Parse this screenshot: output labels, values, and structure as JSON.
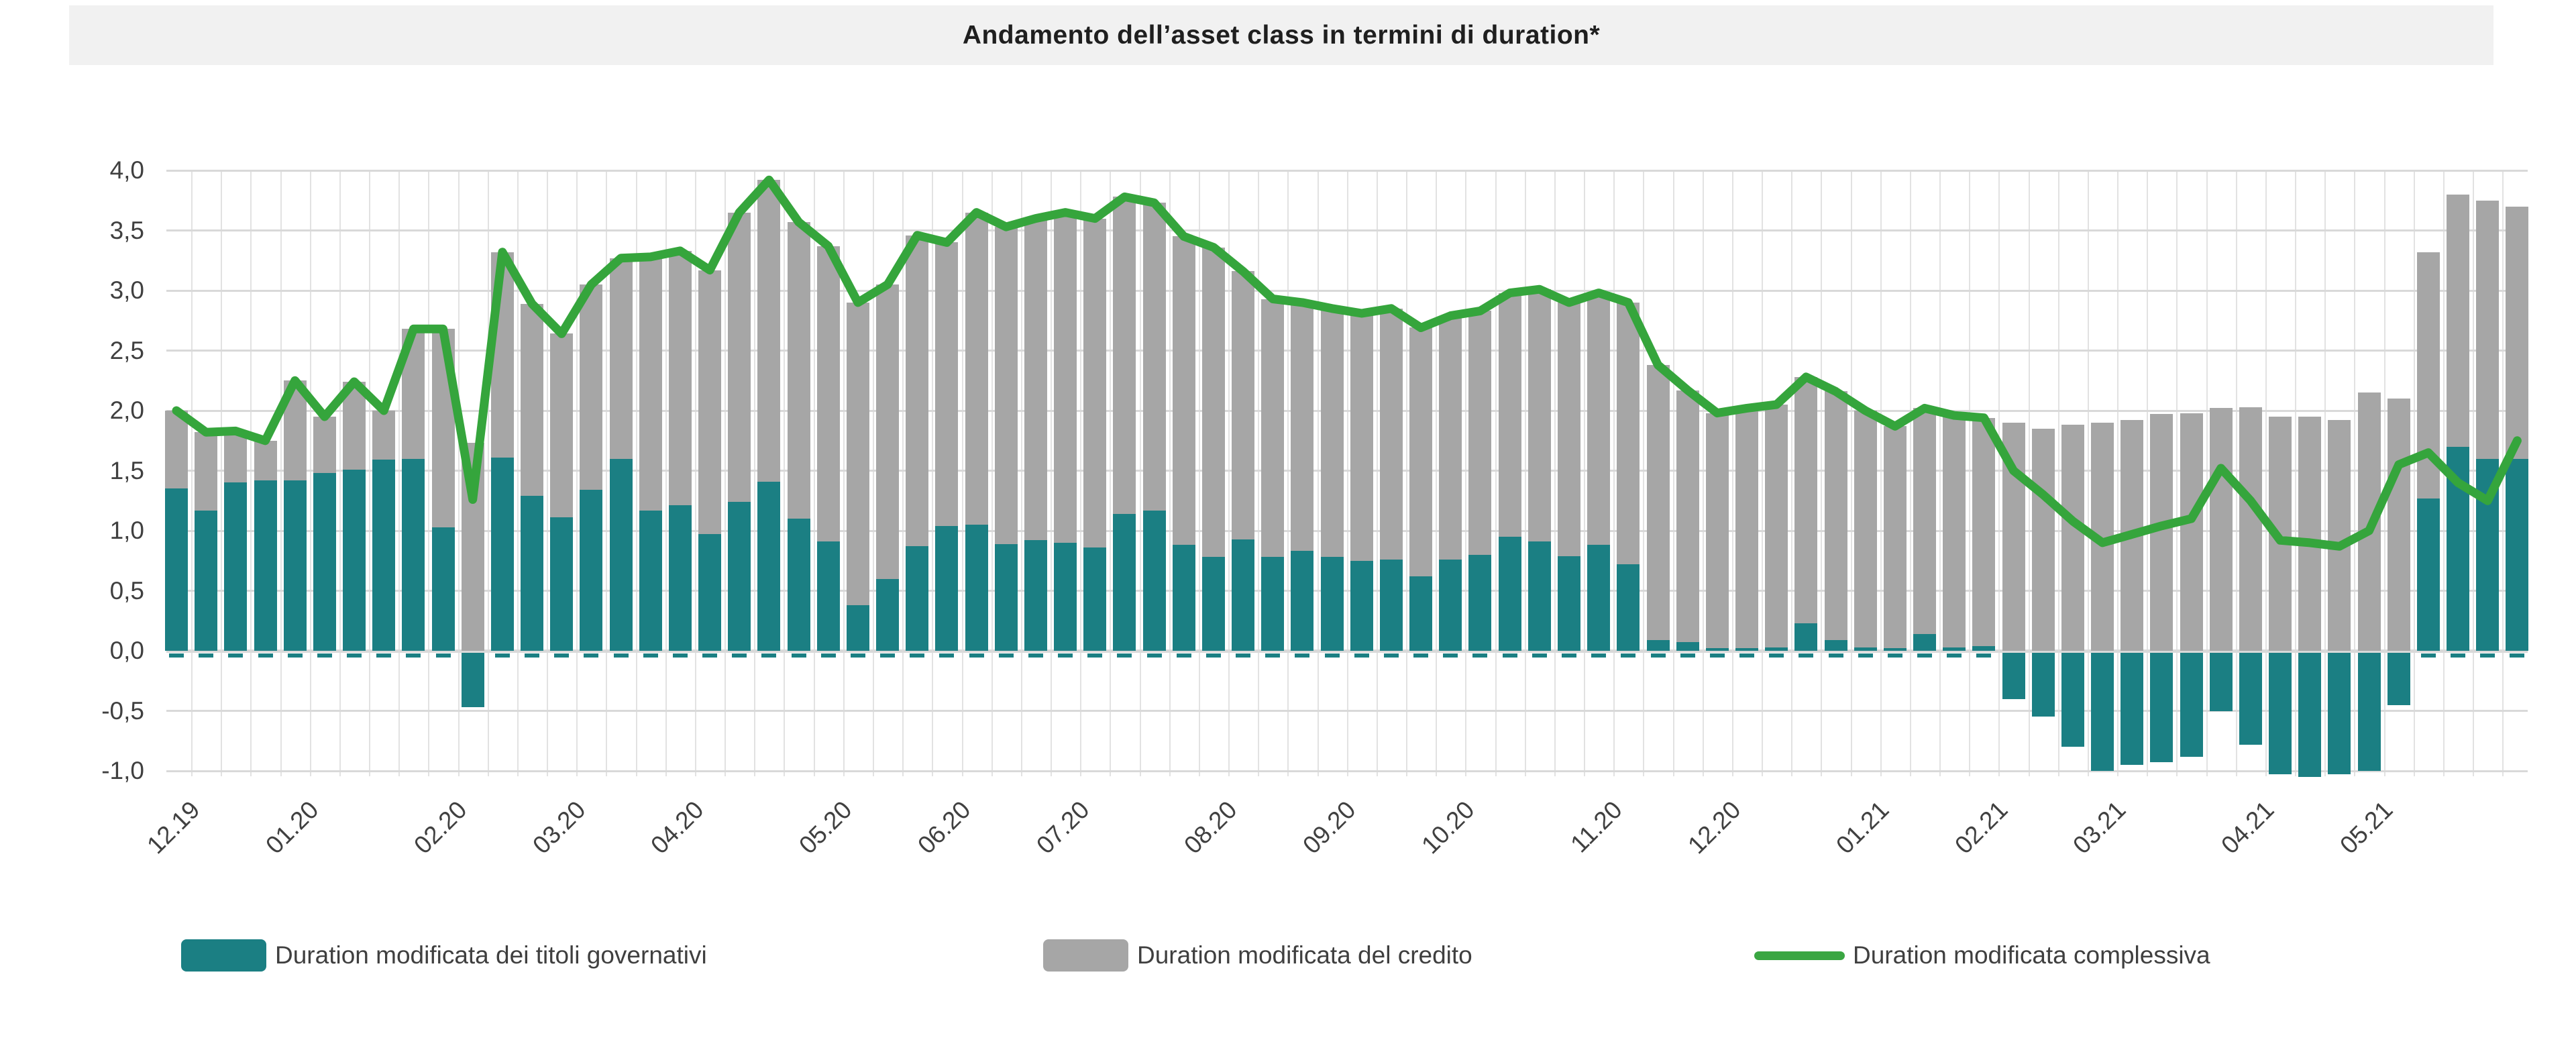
{
  "title": "Andamento dell’asset class in termini di duration*",
  "y_axis": {
    "ticks": [
      {
        "label": "4,0",
        "value": 4.0
      },
      {
        "label": "3,5",
        "value": 3.5
      },
      {
        "label": "3,0",
        "value": 3.0
      },
      {
        "label": "2,5",
        "value": 2.5
      },
      {
        "label": "2,0",
        "value": 2.0
      },
      {
        "label": "1,5",
        "value": 1.5
      },
      {
        "label": "1,0",
        "value": 1.0
      },
      {
        "label": "0,5",
        "value": 0.5
      },
      {
        "label": "0,0",
        "value": 0.0
      },
      {
        "label": "-0,5",
        "value": -0.5
      },
      {
        "label": "-1,0",
        "value": -1.0
      }
    ]
  },
  "x_axis": {
    "labels": [
      {
        "label": "12.19",
        "bar_index": 0
      },
      {
        "label": "01.20",
        "bar_index": 4
      },
      {
        "label": "02.20",
        "bar_index": 9
      },
      {
        "label": "03.20",
        "bar_index": 13
      },
      {
        "label": "04.20",
        "bar_index": 17
      },
      {
        "label": "05.20",
        "bar_index": 22
      },
      {
        "label": "06.20",
        "bar_index": 26
      },
      {
        "label": "07.20",
        "bar_index": 30
      },
      {
        "label": "08.20",
        "bar_index": 35
      },
      {
        "label": "09.20",
        "bar_index": 39
      },
      {
        "label": "10.20",
        "bar_index": 43
      },
      {
        "label": "11.20",
        "bar_index": 48
      },
      {
        "label": "12.20",
        "bar_index": 52
      },
      {
        "label": "01.21",
        "bar_index": 57
      },
      {
        "label": "02.21",
        "bar_index": 61
      },
      {
        "label": "03.21",
        "bar_index": 65
      },
      {
        "label": "04.21",
        "bar_index": 70
      },
      {
        "label": "05.21",
        "bar_index": 74
      }
    ]
  },
  "legend": {
    "items": [
      {
        "label": "Duration modificata dei titoli governativi",
        "marker": "box",
        "color": "#1b7f83"
      },
      {
        "label": "Duration modificata del credito",
        "marker": "box",
        "color": "#a6a6a6"
      },
      {
        "label": "Duration modificata complessiva",
        "marker": "line",
        "color": "#3aa642"
      }
    ]
  },
  "colors": {
    "gov_bar": "#1b7f83",
    "credit_bar": "#a6a6a6",
    "total_line": "#35a53c",
    "grid": "#d9d9d9",
    "banner_bg": "#f1f1f1",
    "axis_text": "#404040"
  },
  "chart_data": {
    "type": "bar",
    "title": "Andamento dell’asset class in termini di duration*",
    "xlabel": "",
    "ylabel": "",
    "ylim": [
      -1.0,
      4.0
    ],
    "grid": true,
    "legend_position": "bottom",
    "frequency": "weekly",
    "x_month_ticks": [
      "12.19",
      "01.20",
      "02.20",
      "03.20",
      "04.20",
      "05.20",
      "06.20",
      "07.20",
      "08.20",
      "09.20",
      "10.20",
      "11.20",
      "12.20",
      "01.21",
      "02.21",
      "03.21",
      "04.21",
      "05.21"
    ],
    "series": [
      {
        "name": "Duration modificata dei titoli governativi",
        "role": "stacked-bar-bottom",
        "color": "#1b7f83",
        "values": [
          1.35,
          1.17,
          1.4,
          1.42,
          1.42,
          1.48,
          1.51,
          1.59,
          1.6,
          1.03,
          -0.47,
          1.61,
          1.29,
          1.11,
          1.34,
          1.6,
          1.17,
          1.21,
          0.97,
          1.24,
          1.41,
          1.1,
          0.91,
          0.38,
          0.6,
          0.87,
          1.04,
          1.05,
          0.89,
          0.92,
          0.9,
          0.86,
          1.14,
          1.17,
          0.88,
          0.78,
          0.93,
          0.78,
          0.83,
          0.78,
          0.75,
          0.76,
          0.62,
          0.76,
          0.8,
          0.95,
          0.91,
          0.79,
          0.88,
          0.72,
          0.09,
          0.07,
          0.02,
          0.02,
          0.03,
          0.23,
          0.09,
          0.03,
          0.02,
          0.14,
          0.03,
          0.04,
          -0.4,
          -0.55,
          -0.8,
          -1.0,
          -0.95,
          -0.93,
          -0.88,
          -0.5,
          -0.78,
          -1.03,
          -1.05,
          -1.03,
          -1.0,
          -0.45,
          1.27,
          1.7,
          1.6,
          1.6
        ]
      },
      {
        "name": "Duration modificata del credito",
        "role": "stacked-bar-top",
        "color": "#a6a6a6",
        "values": [
          0.65,
          0.65,
          0.43,
          0.33,
          0.83,
          0.47,
          0.73,
          0.41,
          1.08,
          1.65,
          1.73,
          1.71,
          1.6,
          1.53,
          1.71,
          1.67,
          2.11,
          2.12,
          2.2,
          2.41,
          2.51,
          2.47,
          2.46,
          2.52,
          2.45,
          2.59,
          2.36,
          2.6,
          2.64,
          2.68,
          2.75,
          2.74,
          2.64,
          2.56,
          2.57,
          2.58,
          2.23,
          2.15,
          2.07,
          2.07,
          2.06,
          2.09,
          2.07,
          2.03,
          2.03,
          2.03,
          2.1,
          2.11,
          2.1,
          2.18,
          2.29,
          2.1,
          1.96,
          2.0,
          2.02,
          2.05,
          2.07,
          1.97,
          1.85,
          1.88,
          1.93,
          1.9,
          1.9,
          1.85,
          1.88,
          1.9,
          1.92,
          1.97,
          1.98,
          2.02,
          2.03,
          1.95,
          1.95,
          1.92,
          2.15,
          2.1,
          2.05,
          2.1,
          2.15,
          2.1
        ]
      },
      {
        "name": "Duration modificata complessiva",
        "role": "line",
        "color": "#35a53c",
        "values": [
          2.0,
          1.82,
          1.83,
          1.75,
          2.25,
          1.95,
          2.24,
          2.0,
          2.68,
          2.68,
          1.26,
          3.32,
          2.89,
          2.64,
          3.05,
          3.27,
          3.28,
          3.33,
          3.17,
          3.65,
          3.92,
          3.57,
          3.37,
          2.9,
          3.05,
          3.46,
          3.4,
          3.65,
          3.53,
          3.6,
          3.65,
          3.6,
          3.78,
          3.73,
          3.45,
          3.36,
          3.16,
          2.93,
          2.9,
          2.85,
          2.81,
          2.85,
          2.69,
          2.79,
          2.83,
          2.98,
          3.01,
          2.9,
          2.98,
          2.9,
          2.38,
          2.17,
          1.98,
          2.02,
          2.05,
          2.28,
          2.16,
          2.0,
          1.87,
          2.02,
          1.96,
          1.94,
          1.5,
          1.3,
          1.08,
          0.9,
          0.97,
          1.04,
          1.1,
          1.52,
          1.25,
          0.92,
          0.9,
          0.87,
          1.0,
          1.55,
          1.65,
          1.4,
          1.25,
          1.75
        ]
      }
    ]
  }
}
